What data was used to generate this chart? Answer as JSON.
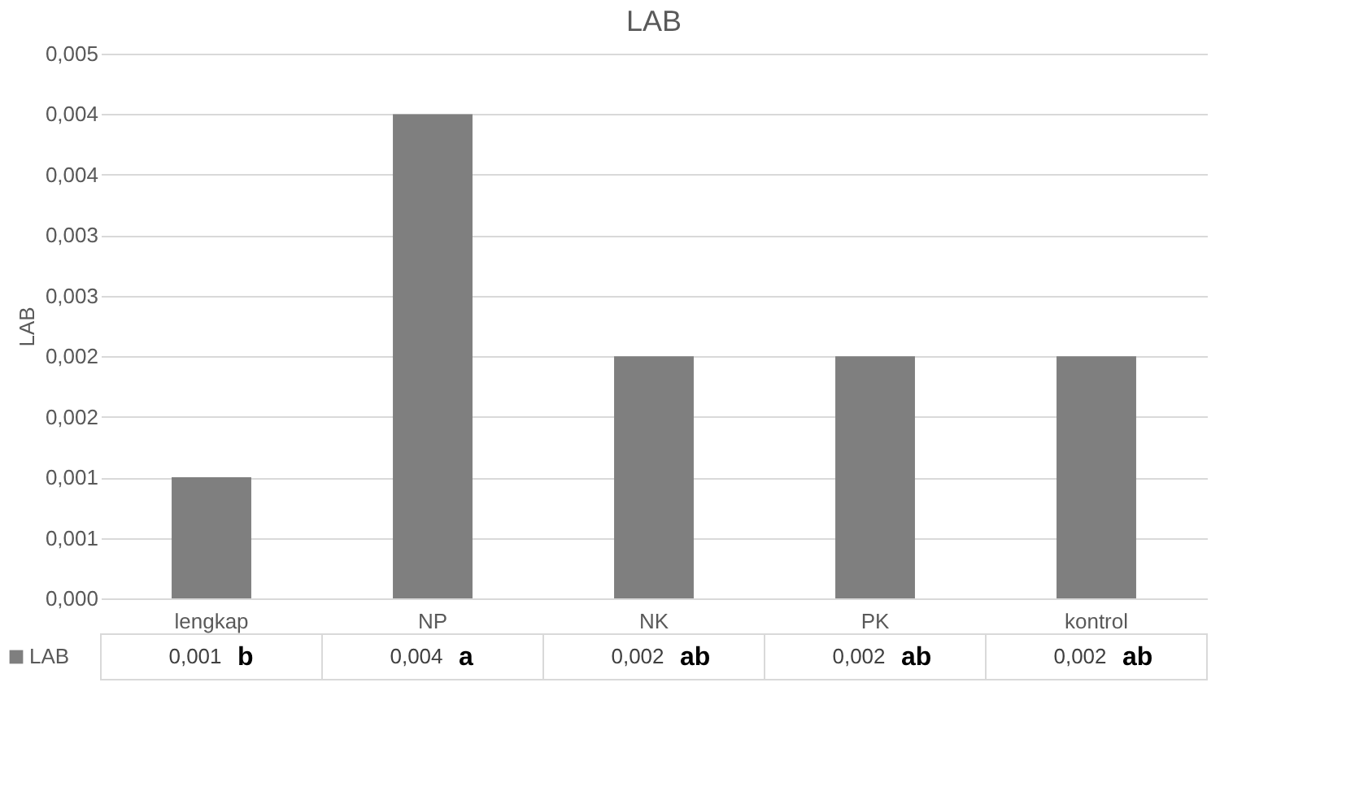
{
  "chart_data": {
    "type": "bar",
    "title": "LAB",
    "ylabel": "LAB",
    "categories": [
      "lengkap",
      "NP",
      "NK",
      "PK",
      "kontrol"
    ],
    "series": [
      {
        "name": "LAB",
        "color": "#7f7f7f",
        "values": [
          0.001,
          0.004,
          0.002,
          0.002,
          0.002
        ],
        "value_labels": [
          "0,001",
          "0,004",
          "0,002",
          "0,002",
          "0,002"
        ]
      }
    ],
    "ylim": [
      0,
      0.0045
    ],
    "yticks": [
      {
        "value": 0,
        "label": "0,000"
      },
      {
        "value": 0.0005,
        "label": "0,001"
      },
      {
        "value": 0.001,
        "label": "0,001"
      },
      {
        "value": 0.0015,
        "label": "0,002"
      },
      {
        "value": 0.002,
        "label": "0,002"
      },
      {
        "value": 0.0025,
        "label": "0,003"
      },
      {
        "value": 0.003,
        "label": "0,003"
      },
      {
        "value": 0.0035,
        "label": "0,004"
      },
      {
        "value": 0.004,
        "label": "0,004"
      },
      {
        "value": 0.0045,
        "label": "0,005"
      }
    ],
    "grid": "y",
    "legend": "bottom left",
    "annotations": [
      "b",
      "a",
      "ab",
      "ab",
      "ab"
    ]
  }
}
